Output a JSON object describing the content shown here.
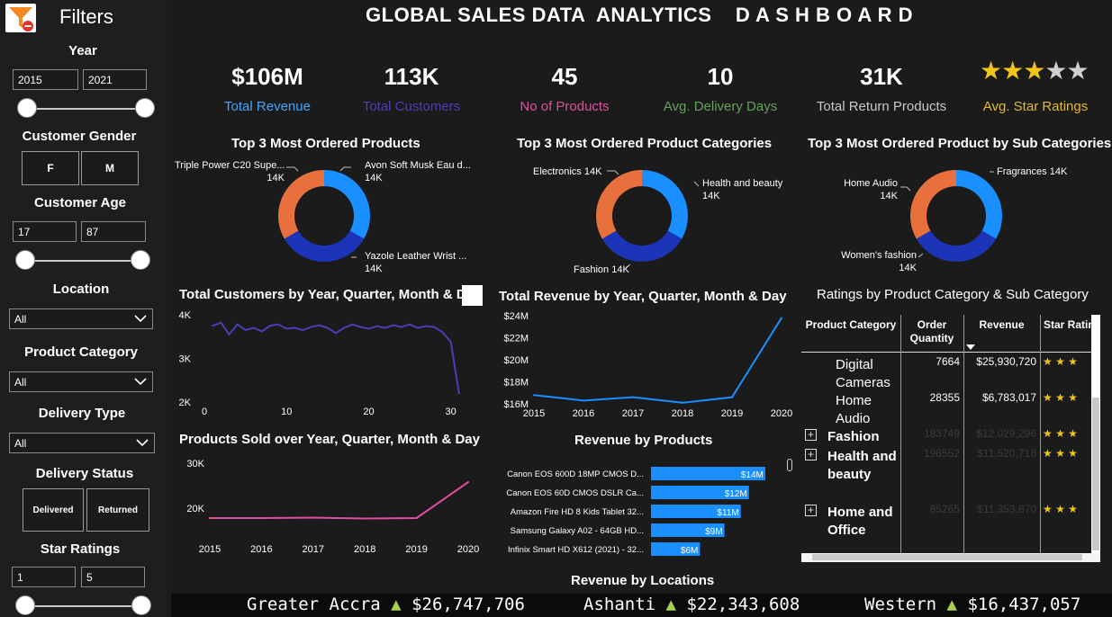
{
  "sidebar": {
    "title": "Filters",
    "year": {
      "label": "Year",
      "from": "2015",
      "to": "2021"
    },
    "gender": {
      "label": "Customer Gender",
      "options": [
        "F",
        "M"
      ]
    },
    "age": {
      "label": "Customer Age",
      "from": "17",
      "to": "87"
    },
    "location": {
      "label": "Location",
      "value": "All"
    },
    "product_category": {
      "label": "Product Category",
      "value": "All"
    },
    "delivery_type": {
      "label": "Delivery Type",
      "value": "All"
    },
    "delivery_status": {
      "label": "Delivery Status",
      "options": [
        "Delivered",
        "Returned"
      ]
    },
    "star_ratings": {
      "label": "Star Ratings",
      "from": "1",
      "to": "5"
    }
  },
  "header": {
    "title": "GLOBAL SALES DATA  ANALYTICS    D A S H B O A R D"
  },
  "kpis": [
    {
      "value": "$106M",
      "label": "Total Revenue",
      "color": "#3fa6ff"
    },
    {
      "value": "113K",
      "label": "Total Customers",
      "color": "#4a3fb8"
    },
    {
      "value": "45",
      "label": "No of Products",
      "color": "#e24e9e"
    },
    {
      "value": "10",
      "label": "Avg. Delivery Days",
      "color": "#64a25a"
    },
    {
      "value": "31K",
      "label": "Total Return Products",
      "color": "#c8c8c8"
    },
    {
      "value": "",
      "label": "Avg. Star Ratings",
      "color": "#e1bb2e",
      "stars": 3,
      "max_stars": 5
    }
  ],
  "donuts": [
    {
      "title": "Top 3 Most Ordered Products",
      "labels": [
        {
          "name": "Triple Power C20 Supe...",
          "value": "14K"
        },
        {
          "name": "Avon Soft Musk Eau d...",
          "value": "14K"
        },
        {
          "name": "Yazole Leather Wrist ...",
          "value": "14K"
        }
      ]
    },
    {
      "title": "Top 3 Most Ordered Product Categories",
      "labels": [
        {
          "name": "Electronics",
          "value": "14K"
        },
        {
          "name": "Health and beauty",
          "value": "14K"
        },
        {
          "name": "Fashion",
          "value": "14K"
        }
      ]
    },
    {
      "title": "Top 3 Most Ordered Product by Sub Categories",
      "labels": [
        {
          "name": "Home Audio",
          "value": "14K"
        },
        {
          "name": "Fragrances",
          "value": "14K"
        },
        {
          "name": "Women's fashion",
          "value": "14K"
        }
      ]
    }
  ],
  "donut_colors": [
    "#1a8fff",
    "#1c35b8",
    "#e8703d"
  ],
  "chart_data": [
    {
      "type": "line",
      "title": "Total Customers by Year, Quarter, Month & D",
      "x": [
        1,
        2,
        3,
        4,
        5,
        6,
        7,
        8,
        9,
        10,
        11,
        12,
        13,
        14,
        15,
        16,
        17,
        18,
        19,
        20,
        21,
        22,
        23,
        24,
        25,
        26,
        27,
        28,
        29,
        30,
        31
      ],
      "values": [
        3750,
        3820,
        3550,
        3780,
        3650,
        3700,
        3620,
        3750,
        3780,
        3680,
        3700,
        3650,
        3720,
        3760,
        3700,
        3580,
        3700,
        3780,
        3720,
        3680,
        3740,
        3700,
        3760,
        3720,
        3780,
        3700,
        3740,
        3720,
        3600,
        3380,
        2200
      ],
      "xticks": [
        0,
        10,
        20,
        30
      ],
      "yticks": [
        "2K",
        "3K",
        "4K"
      ],
      "ylim": [
        2000,
        4000
      ],
      "xlim": [
        -1,
        33
      ],
      "color": "#4a3fb8"
    },
    {
      "type": "line",
      "title": "Total Revenue by Year, Quarter, Month & Day",
      "x": [
        2015,
        2016,
        2017,
        2018,
        2019,
        2020
      ],
      "values": [
        16.8,
        16.3,
        16.6,
        16.1,
        16.6,
        23.8
      ],
      "xticks": [
        "2015",
        "2016",
        "2017",
        "2018",
        "2019",
        "2020"
      ],
      "yticks": [
        "$16M",
        "$18M",
        "$20M",
        "$22M",
        "$24M"
      ],
      "ylim": [
        16,
        24
      ],
      "color": "#1a8fff"
    },
    {
      "type": "line",
      "title": "Products Sold over Year, Quarter, Month & Day",
      "x": [
        2015,
        2016,
        2017,
        2018,
        2019,
        2020
      ],
      "values": [
        17800,
        17800,
        17900,
        17700,
        17800,
        25800
      ],
      "xticks": [
        "2015",
        "2016",
        "2017",
        "2018",
        "2019",
        "2020"
      ],
      "yticks": [
        "20K",
        "30K"
      ],
      "ylim": [
        13000,
        31000
      ],
      "color": "#e24e9e"
    },
    {
      "type": "bar",
      "title": "Revenue by Products",
      "categories": [
        "Canon EOS 600D 18MP CMOS D...",
        "Canon EOS 60D CMOS DSLR Ca...",
        "Amazon Fire HD 8 Kids Tablet 32...",
        "Samsung Galaxy A02 - 64GB HD...",
        "Infinix Smart HD X612 (2021) - 32..."
      ],
      "values": [
        14,
        12,
        11,
        9,
        6
      ],
      "labels": [
        "$14M",
        "$12M",
        "$11M",
        "$9M",
        "$6M"
      ],
      "xlim": [
        0,
        16
      ],
      "color": "#1a8fff"
    }
  ],
  "ratings_table": {
    "title": "Ratings by Product Category & Sub Category",
    "columns": [
      "Product Category",
      "Order Quantity",
      "Revenue",
      "Star Rating"
    ],
    "rows": [
      {
        "name": "Digital Cameras",
        "qty": "7664",
        "revenue": "$25,930,720",
        "stars": "★ ★ ★",
        "bold": false,
        "expand": false
      },
      {
        "name": "Home Audio",
        "qty": "28355",
        "revenue": "$6,783,017",
        "stars": "★ ★ ★",
        "bold": false,
        "expand": false
      },
      {
        "name": "Fashion",
        "qty": "183749",
        "revenue": "$12,029,296",
        "stars": "★ ★ ★",
        "bold": true,
        "expand": true
      },
      {
        "name": "Health and beauty",
        "qty": "198552",
        "revenue": "$11,520,718",
        "stars": "★ ★ ★",
        "bold": true,
        "expand": true
      },
      {
        "name": "Home and Office",
        "qty": "85265",
        "revenue": "$11,353,870",
        "stars": "★ ★ ★",
        "bold": true,
        "expand": true
      }
    ]
  },
  "locations": {
    "title": "Revenue by Locations",
    "items": [
      {
        "name": "Greater Accra",
        "value": "$26,747,706"
      },
      {
        "name": "Ashanti",
        "value": "$22,343,608"
      },
      {
        "name": "Western",
        "value": "$16,437,057"
      }
    ]
  }
}
